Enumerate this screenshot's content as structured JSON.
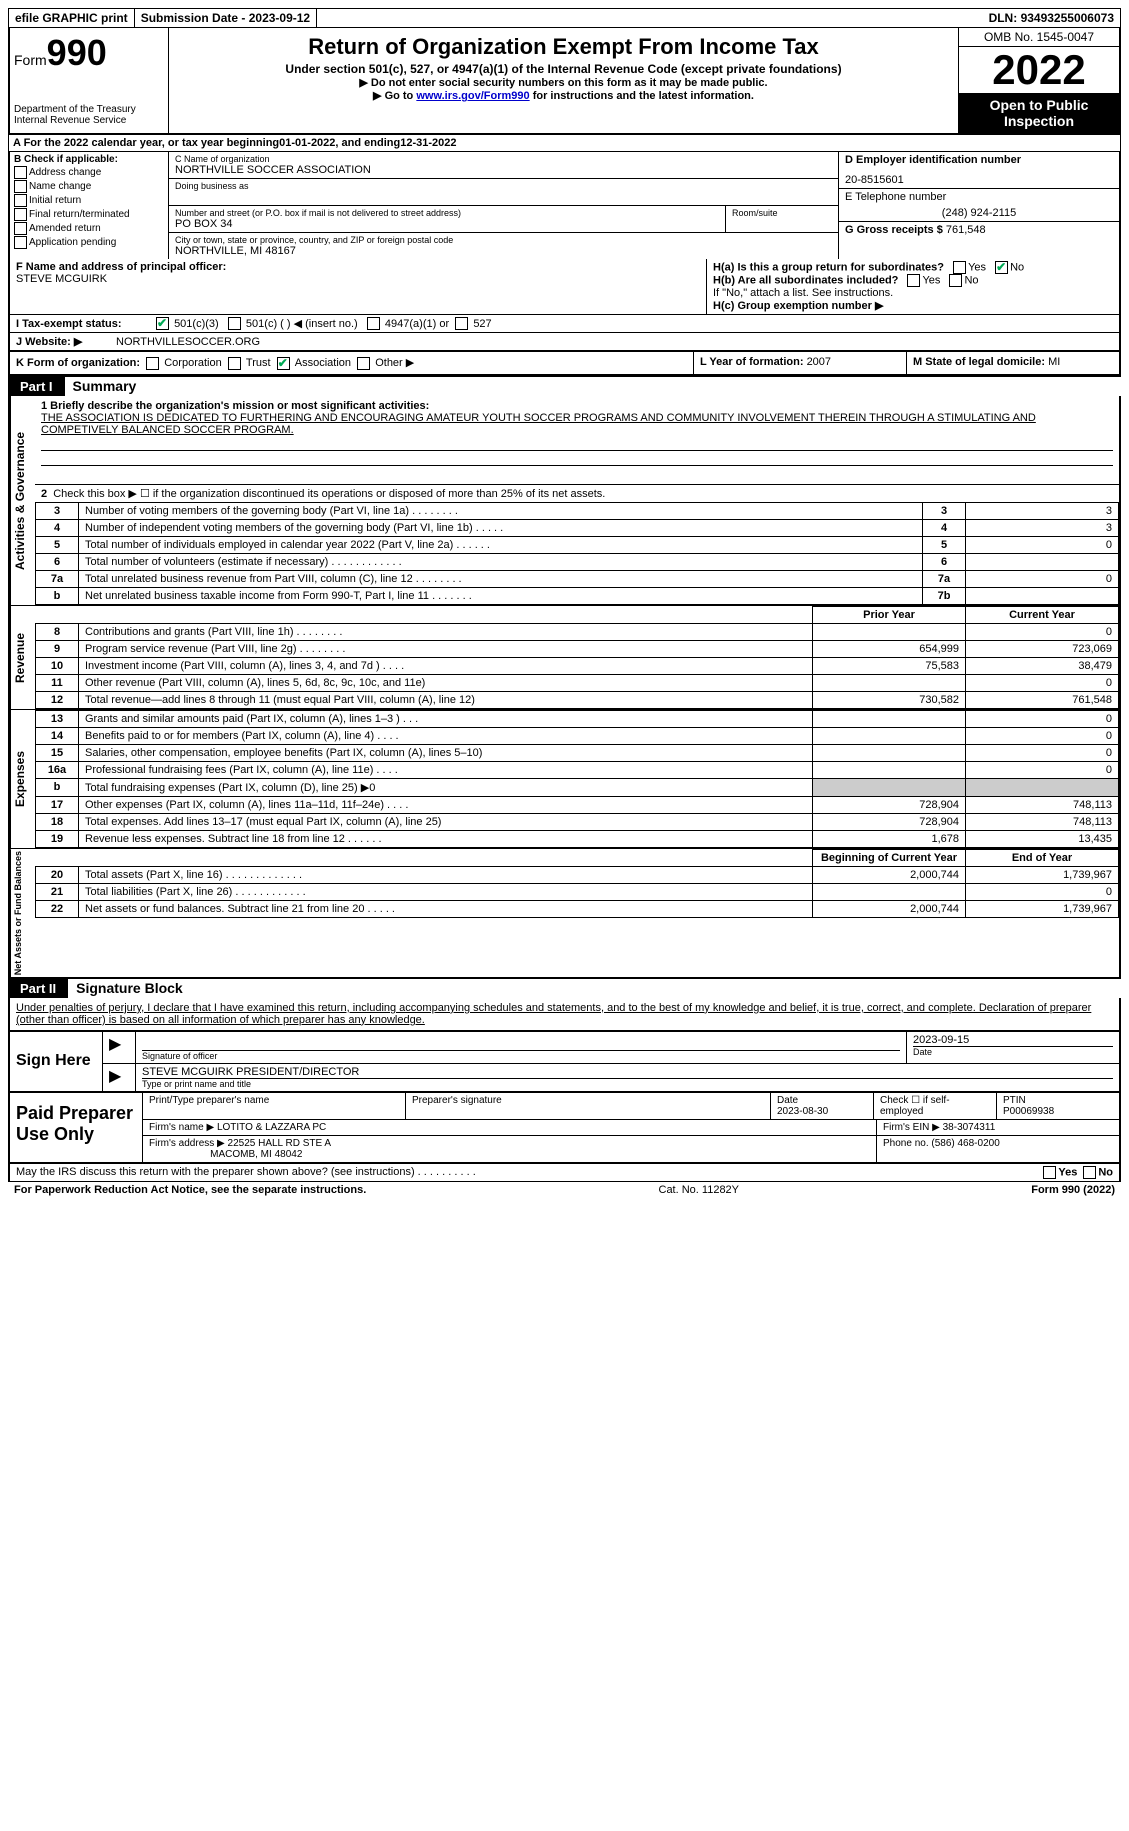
{
  "topbar": {
    "efile": "efile GRAPHIC print",
    "subdate_label": "Submission Date - ",
    "subdate": "2023-09-12",
    "dln_label": "DLN: ",
    "dln": "93493255006073"
  },
  "header": {
    "form_prefix": "Form",
    "form_num": "990",
    "dept": "Department of the Treasury",
    "irs": "Internal Revenue Service",
    "title": "Return of Organization Exempt From Income Tax",
    "subtitle": "Under section 501(c), 527, or 4947(a)(1) of the Internal Revenue Code (except private foundations)",
    "note1": "▶ Do not enter social security numbers on this form as it may be made public.",
    "note2_pre": "▶ Go to ",
    "note2_link": "www.irs.gov/Form990",
    "note2_post": " for instructions and the latest information.",
    "omb": "OMB No. 1545-0047",
    "year": "2022",
    "otp": "Open to Public Inspection"
  },
  "rowA": {
    "pre": "A For the 2022 calendar year, or tax year beginning ",
    "begin": "01-01-2022",
    "mid": " , and ending ",
    "end": "12-31-2022"
  },
  "colB": {
    "title": "B Check if applicable:",
    "items": [
      "Address change",
      "Name change",
      "Initial return",
      "Final return/terminated",
      "Amended return",
      "Application pending"
    ]
  },
  "colC": {
    "name_label": "C Name of organization",
    "name": "NORTHVILLE SOCCER ASSOCIATION",
    "dba_label": "Doing business as",
    "addr_label": "Number and street (or P.O. box if mail is not delivered to street address)",
    "room_label": "Room/suite",
    "addr": "PO BOX 34",
    "city_label": "City or town, state or province, country, and ZIP or foreign postal code",
    "city": "NORTHVILLE, MI  48167"
  },
  "colD": {
    "ein_label": "D Employer identification number",
    "ein": "20-8515601",
    "tel_label": "E Telephone number",
    "tel": "(248) 924-2115",
    "gross_label": "G Gross receipts $ ",
    "gross": "761,548"
  },
  "rowF": {
    "label": "F Name and address of principal officer:",
    "name": "STEVE MCGUIRK"
  },
  "rowH": {
    "a": "H(a) Is this a group return for subordinates?",
    "b": "H(b) Are all subordinates included?",
    "note": "If \"No,\" attach a list. See instructions.",
    "c": "H(c) Group exemption number ▶",
    "yes": "Yes",
    "no": "No"
  },
  "rowI": {
    "label": "I    Tax-exempt status:",
    "opts": [
      "501(c)(3)",
      "501(c) (  ) ◀ (insert no.)",
      "4947(a)(1) or",
      "527"
    ]
  },
  "rowJ": {
    "label": "J   Website: ▶",
    "value": "NORTHVILLESOCCER.ORG"
  },
  "rowK": {
    "label": "K Form of organization:",
    "opts": [
      "Corporation",
      "Trust",
      "Association",
      "Other ▶"
    ],
    "checked_idx": 2,
    "L": "L Year of formation: ",
    "Lval": "2007",
    "M": "M State of legal domicile: ",
    "Mval": "MI"
  },
  "parts": {
    "p1": "Part I",
    "p1_title": "Summary",
    "p2": "Part II",
    "p2_title": "Signature Block"
  },
  "mission": {
    "label": "1   Briefly describe the organization's mission or most significant activities:",
    "text": "THE ASSOCIATION IS DEDICATED TO FURTHERING AND ENCOURAGING AMATEUR YOUTH SOCCER PROGRAMS AND COMMUNITY INVOLVEMENT THEREIN THROUGH A STIMULATING AND COMPETIVELY BALANCED SOCCER PROGRAM."
  },
  "line2": "Check this box ▶ ☐ if the organization discontinued its operations or disposed of more than 25% of its net assets.",
  "gov_rows": [
    {
      "n": "3",
      "d": "Number of voting members of the governing body (Part VI, line 1a)   .    .    .    .    .    .    .    .",
      "b": "3",
      "v": "3"
    },
    {
      "n": "4",
      "d": "Number of independent voting members of the governing body (Part VI, line 1b)   .    .    .    .    .",
      "b": "4",
      "v": "3"
    },
    {
      "n": "5",
      "d": "Total number of individuals employed in calendar year 2022 (Part V, line 2a)   .    .    .    .    .    .",
      "b": "5",
      "v": "0"
    },
    {
      "n": "6",
      "d": "Total number of volunteers (estimate if necessary)    .    .    .    .    .    .    .    .    .    .    .    .",
      "b": "6",
      "v": ""
    },
    {
      "n": "7a",
      "d": "Total unrelated business revenue from Part VIII, column (C), line 12    .    .    .    .    .    .    .    .",
      "b": "7a",
      "v": "0"
    },
    {
      "n": "b",
      "d": "Net unrelated business taxable income from Form 990-T, Part I, line 11    .    .    .    .    .    .    .",
      "b": "7b",
      "v": ""
    }
  ],
  "vlabels": {
    "gov": "Activities & Governance",
    "rev": "Revenue",
    "exp": "Expenses",
    "net": "Net Assets or Fund Balances"
  },
  "cols": {
    "prior": "Prior Year",
    "current": "Current Year",
    "boy": "Beginning of Current Year",
    "eoy": "End of Year"
  },
  "rev_rows": [
    {
      "n": "8",
      "d": "Contributions and grants (Part VIII, line 1h)   .    .    .    .    .    .    .    .",
      "p": "",
      "c": "0"
    },
    {
      "n": "9",
      "d": "Program service revenue (Part VIII, line 2g)    .    .    .    .    .    .    .    .",
      "p": "654,999",
      "c": "723,069"
    },
    {
      "n": "10",
      "d": "Investment income (Part VIII, column (A), lines 3, 4, and 7d )   .    .    .    .",
      "p": "75,583",
      "c": "38,479"
    },
    {
      "n": "11",
      "d": "Other revenue (Part VIII, column (A), lines 5, 6d, 8c, 9c, 10c, and 11e)",
      "p": "",
      "c": "0"
    },
    {
      "n": "12",
      "d": "Total revenue—add lines 8 through 11 (must equal Part VIII, column (A), line 12)",
      "p": "730,582",
      "c": "761,548"
    }
  ],
  "exp_rows": [
    {
      "n": "13",
      "d": "Grants and similar amounts paid (Part IX, column (A), lines 1–3 )   .    .    .",
      "p": "",
      "c": "0"
    },
    {
      "n": "14",
      "d": "Benefits paid to or for members (Part IX, column (A), line 4)   .    .    .    .",
      "p": "",
      "c": "0"
    },
    {
      "n": "15",
      "d": "Salaries, other compensation, employee benefits (Part IX, column (A), lines 5–10)",
      "p": "",
      "c": "0"
    },
    {
      "n": "16a",
      "d": "Professional fundraising fees (Part IX, column (A), line 11e)   .    .    .    .",
      "p": "",
      "c": "0"
    },
    {
      "n": "b",
      "d": "Total fundraising expenses (Part IX, column (D), line 25) ▶0",
      "p": "shade",
      "c": "shade"
    },
    {
      "n": "17",
      "d": "Other expenses (Part IX, column (A), lines 11a–11d, 11f–24e)   .    .    .    .",
      "p": "728,904",
      "c": "748,113"
    },
    {
      "n": "18",
      "d": "Total expenses. Add lines 13–17 (must equal Part IX, column (A), line 25)",
      "p": "728,904",
      "c": "748,113"
    },
    {
      "n": "19",
      "d": "Revenue less expenses. Subtract line 18 from line 12   .    .    .    .    .    .",
      "p": "1,678",
      "c": "13,435"
    }
  ],
  "net_rows": [
    {
      "n": "20",
      "d": "Total assets (Part X, line 16)   .    .    .    .    .    .    .    .    .    .    .    .    .",
      "p": "2,000,744",
      "c": "1,739,967"
    },
    {
      "n": "21",
      "d": "Total liabilities (Part X, line 26)    .    .    .    .    .    .    .    .    .    .    .    .",
      "p": "",
      "c": "0"
    },
    {
      "n": "22",
      "d": "Net assets or fund balances. Subtract line 21 from line 20   .    .    .    .    .",
      "p": "2,000,744",
      "c": "1,739,967"
    }
  ],
  "sig": {
    "declaration": "Under penalties of perjury, I declare that I have examined this return, including accompanying schedules and statements, and to the best of my knowledge and belief, it is true, correct, and complete. Declaration of preparer (other than officer) is based on all information of which preparer has any knowledge.",
    "sign_here": "Sign Here",
    "sig_of_officer": "Signature of officer",
    "date": "Date",
    "sig_date": "2023-09-15",
    "name_title": "STEVE MCGUIRK  PRESIDENT/DIRECTOR",
    "type_label": "Type or print name and title"
  },
  "prep": {
    "label": "Paid Preparer Use Only",
    "h1": "Print/Type preparer's name",
    "h2": "Preparer's signature",
    "h3": "Date",
    "date": "2023-08-30",
    "h4": "Check ☐ if self-employed",
    "h5": "PTIN",
    "ptin": "P00069938",
    "firm_label": "Firm's name    ▶",
    "firm": "LOTITO & LAZZARA PC",
    "ein_label": "Firm's EIN ▶",
    "ein": "38-3074311",
    "addr_label": "Firm's address ▶",
    "addr1": "22525 HALL RD STE A",
    "addr2": "MACOMB, MI  48042",
    "phone_label": "Phone no. ",
    "phone": "(586) 468-0200"
  },
  "footer": {
    "discuss": "May the IRS discuss this return with the preparer shown above? (see instructions)    .    .    .    .    .    .    .    .    .    .",
    "paperwork": "For Paperwork Reduction Act Notice, see the separate instructions.",
    "cat": "Cat. No. 11282Y",
    "form": "Form 990 (2022)"
  }
}
